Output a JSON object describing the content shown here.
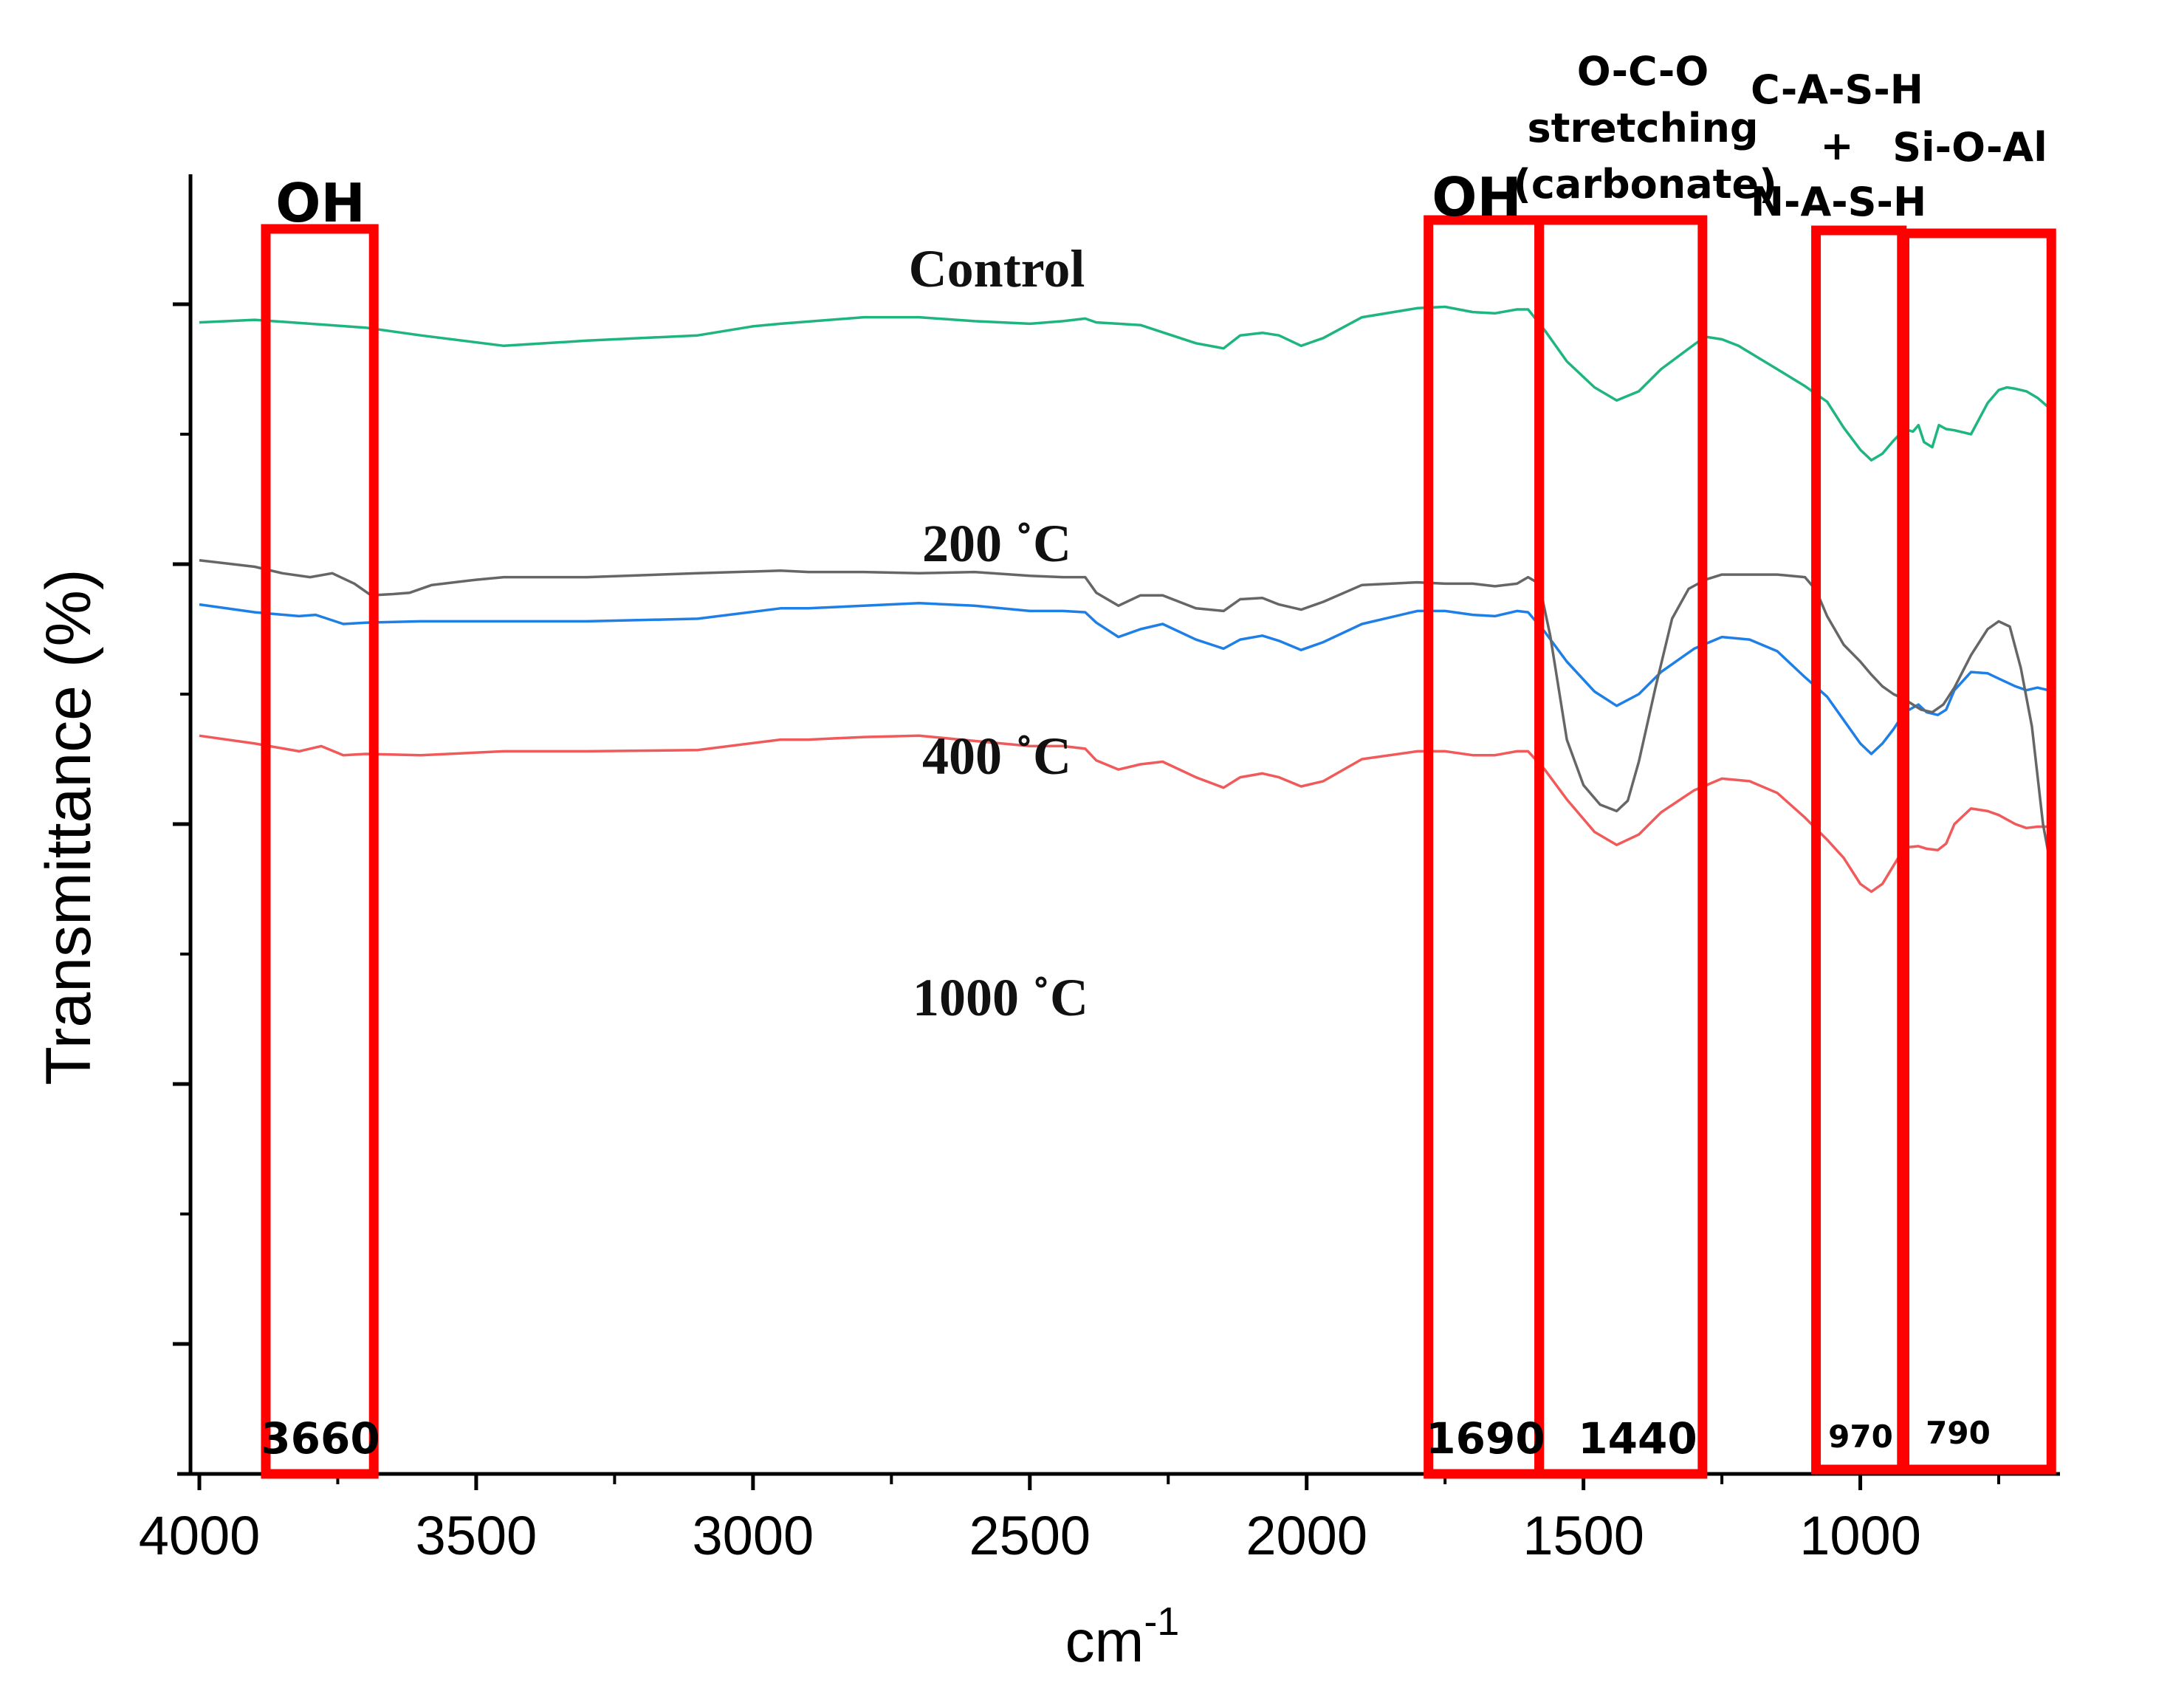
{
  "chart_data": {
    "type": "line",
    "title": "",
    "xlabel": "cm",
    "xlabel_superscript": "-1",
    "ylabel": "Transmittance (%)",
    "xlim": [
      4000,
      650
    ],
    "xaxis_reversed": true,
    "x_ticks": [
      "4000",
      "3500",
      "3000",
      "2500",
      "2000",
      "1500",
      "1000"
    ],
    "x_tick_values": [
      4000,
      3500,
      3000,
      2500,
      2000,
      1500,
      1000
    ],
    "ylim": [
      0,
      100
    ],
    "y_major_ticks": [
      10,
      30,
      50,
      70,
      90
    ],
    "y_minor_ticks": [
      20,
      40,
      60,
      80
    ],
    "y_tick_labels_shown": false,
    "grid": false,
    "series": [
      {
        "name": "Control",
        "label": "Control",
        "color": "#1fb57f",
        "x": [
          4000,
          3900,
          3800,
          3700,
          3600,
          3450,
          3300,
          3100,
          3000,
          2950,
          2800,
          2700,
          2600,
          2500,
          2440,
          2400,
          2380,
          2300,
          2200,
          2150,
          2120,
          2080,
          2050,
          2010,
          1970,
          1900,
          1800,
          1750,
          1700,
          1660,
          1620,
          1600,
          1570,
          1530,
          1480,
          1440,
          1400,
          1360,
          1300,
          1280,
          1250,
          1220,
          1150,
          1100,
          1060,
          1030,
          1000,
          980,
          960,
          940,
          920,
          905,
          895,
          885,
          870,
          858,
          845,
          830,
          800,
          770,
          750,
          735,
          720,
          700,
          680,
          650
        ],
        "y": [
          88.6,
          88.8,
          88.5,
          88.2,
          87.6,
          86.8,
          87.2,
          87.6,
          88.3,
          88.5,
          89.0,
          89.0,
          88.7,
          88.5,
          88.7,
          88.9,
          88.6,
          88.4,
          87.0,
          86.6,
          87.6,
          87.8,
          87.6,
          86.8,
          87.4,
          89.0,
          89.7,
          89.8,
          89.4,
          89.3,
          89.6,
          89.6,
          88.0,
          85.6,
          83.6,
          82.6,
          83.3,
          85.0,
          86.9,
          87.5,
          87.3,
          86.8,
          85.0,
          83.7,
          82.5,
          80.5,
          78.8,
          78.0,
          78.5,
          79.5,
          80.4,
          80.2,
          80.7,
          79.4,
          79.0,
          80.7,
          80.4,
          80.3,
          80.0,
          82.4,
          83.4,
          83.6,
          83.5,
          83.3,
          82.8,
          81.7
        ]
      },
      {
        "name": "200 °C",
        "label": "200 ˚C",
        "color": "#1e7fe6",
        "x": [
          4000,
          3900,
          3820,
          3790,
          3740,
          3700,
          3600,
          3450,
          3300,
          3100,
          2950,
          2900,
          2800,
          2700,
          2600,
          2500,
          2440,
          2400,
          2380,
          2340,
          2300,
          2260,
          2200,
          2150,
          2120,
          2080,
          2050,
          2010,
          1970,
          1900,
          1800,
          1750,
          1700,
          1660,
          1620,
          1600,
          1570,
          1530,
          1480,
          1440,
          1400,
          1360,
          1300,
          1250,
          1200,
          1150,
          1100,
          1060,
          1030,
          1000,
          980,
          960,
          940,
          920,
          895,
          880,
          860,
          845,
          830,
          800,
          770,
          750,
          720,
          700,
          680,
          650
        ],
        "y": [
          66.9,
          66.3,
          66.0,
          66.1,
          65.4,
          65.5,
          65.6,
          65.6,
          65.6,
          65.8,
          66.6,
          66.6,
          66.8,
          67.0,
          66.8,
          66.4,
          66.4,
          66.3,
          65.5,
          64.4,
          65.0,
          65.4,
          64.2,
          63.5,
          64.2,
          64.5,
          64.1,
          63.4,
          64.0,
          65.4,
          66.4,
          66.4,
          66.1,
          66.0,
          66.4,
          66.3,
          64.8,
          62.5,
          60.2,
          59.1,
          60.0,
          61.7,
          63.5,
          64.4,
          64.2,
          63.3,
          61.3,
          59.8,
          58.0,
          56.2,
          55.4,
          56.2,
          57.3,
          58.6,
          59.2,
          58.6,
          58.4,
          58.8,
          60.3,
          61.7,
          61.6,
          61.2,
          60.6,
          60.3,
          60.5,
          60.2
        ]
      },
      {
        "name": "400 °C",
        "label": "400 ˚C",
        "color": "#f05a5a",
        "x": [
          4000,
          3900,
          3820,
          3780,
          3740,
          3700,
          3600,
          3450,
          3300,
          3100,
          2950,
          2900,
          2800,
          2700,
          2600,
          2500,
          2440,
          2400,
          2380,
          2340,
          2300,
          2260,
          2200,
          2150,
          2120,
          2080,
          2050,
          2010,
          1970,
          1900,
          1800,
          1750,
          1700,
          1660,
          1620,
          1600,
          1570,
          1530,
          1480,
          1440,
          1400,
          1360,
          1300,
          1250,
          1200,
          1150,
          1100,
          1060,
          1030,
          1000,
          980,
          960,
          940,
          920,
          895,
          880,
          860,
          845,
          830,
          800,
          770,
          750,
          720,
          700,
          680,
          650
        ],
        "y": [
          56.8,
          56.2,
          55.6,
          56.0,
          55.3,
          55.4,
          55.3,
          55.6,
          55.6,
          55.7,
          56.5,
          56.5,
          56.7,
          56.8,
          56.4,
          56.0,
          56.0,
          55.8,
          54.9,
          54.2,
          54.6,
          54.8,
          53.6,
          52.8,
          53.6,
          53.9,
          53.6,
          52.9,
          53.3,
          55.0,
          55.6,
          55.6,
          55.3,
          55.3,
          55.6,
          55.6,
          54.2,
          51.9,
          49.4,
          48.4,
          49.2,
          50.9,
          52.6,
          53.5,
          53.3,
          52.4,
          50.5,
          48.8,
          47.4,
          45.4,
          44.8,
          45.4,
          46.8,
          48.2,
          48.3,
          48.1,
          48.0,
          48.5,
          50.0,
          51.2,
          51.0,
          50.7,
          50.0,
          49.7,
          49.8,
          49.8
        ]
      },
      {
        "name": "1000 °C",
        "label": "1000 ˚C",
        "color": "#666666",
        "x": [
          4000,
          3900,
          3850,
          3800,
          3760,
          3720,
          3690,
          3650,
          3620,
          3580,
          3500,
          3450,
          3300,
          3100,
          2950,
          2900,
          2800,
          2700,
          2600,
          2500,
          2440,
          2400,
          2380,
          2340,
          2300,
          2260,
          2200,
          2150,
          2120,
          2080,
          2050,
          2010,
          1970,
          1900,
          1800,
          1750,
          1700,
          1660,
          1620,
          1600,
          1580,
          1560,
          1530,
          1500,
          1470,
          1440,
          1420,
          1400,
          1370,
          1340,
          1310,
          1280,
          1250,
          1220,
          1150,
          1100,
          1080,
          1060,
          1030,
          1000,
          980,
          960,
          940,
          920,
          905,
          890,
          870,
          850,
          830,
          800,
          770,
          750,
          730,
          710,
          690,
          670,
          650
        ],
        "y": [
          70.3,
          69.8,
          69.3,
          69.0,
          69.3,
          68.5,
          67.6,
          67.7,
          67.8,
          68.4,
          68.8,
          69.0,
          69.0,
          69.3,
          69.5,
          69.4,
          69.4,
          69.3,
          69.4,
          69.1,
          69.0,
          69.0,
          67.8,
          66.8,
          67.6,
          67.6,
          66.6,
          66.4,
          67.3,
          67.4,
          66.9,
          66.5,
          67.1,
          68.4,
          68.6,
          68.5,
          68.5,
          68.3,
          68.5,
          69.0,
          68.5,
          64.5,
          56.5,
          53.0,
          51.5,
          51.0,
          51.8,
          54.8,
          60.5,
          65.8,
          68.1,
          68.8,
          69.2,
          69.2,
          69.2,
          69.0,
          68.0,
          66.0,
          63.8,
          62.5,
          61.5,
          60.6,
          60.0,
          59.6,
          59.2,
          58.8,
          58.6,
          59.2,
          60.5,
          63.0,
          65.0,
          65.6,
          65.2,
          62.0,
          57.5,
          50.0,
          45.4
        ]
      }
    ],
    "annotations": [
      {
        "id": "oh-3660",
        "x_range": [
          3880,
          3685
        ],
        "label_top": "OH",
        "label_bottom": "3660"
      },
      {
        "id": "oh-1690",
        "x_range": [
          1780,
          1580
        ],
        "label_top": "OH",
        "label_bottom": "1690"
      },
      {
        "id": "oco-1440",
        "x_range": [
          1580,
          1285
        ],
        "label_top": [
          "O-C-O",
          "stretching",
          "(carbonate)"
        ],
        "label_bottom": "1440"
      },
      {
        "id": "cash-970",
        "x_range": [
          1080,
          925
        ],
        "label_top": [
          "C-A-S-H",
          "+",
          "N-A-S-H"
        ],
        "label_bottom": "970"
      },
      {
        "id": "sioal-790",
        "x_range": [
          920,
          655
        ],
        "label_top": [
          "Si-O-Al"
        ],
        "label_bottom": "790"
      }
    ],
    "box_color": "#ff0000"
  }
}
